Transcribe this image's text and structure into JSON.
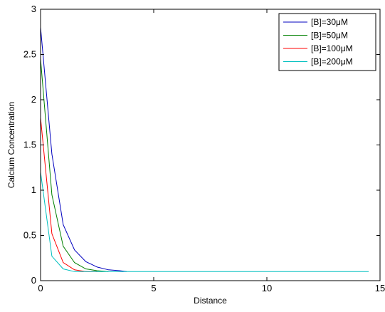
{
  "chart_data": {
    "type": "line",
    "title": "",
    "xlabel": "Distance",
    "ylabel": "Calcium Concentration",
    "xlim": [
      0,
      15
    ],
    "ylim": [
      0,
      3
    ],
    "xticks": [
      0,
      5,
      10,
      15
    ],
    "yticks": [
      0,
      0.5,
      1,
      1.5,
      2,
      2.5,
      3
    ],
    "xtick_labels": [
      "0",
      "5",
      "10",
      "15"
    ],
    "ytick_labels": [
      "0",
      "0.5",
      "1",
      "1.5",
      "2",
      "2.5",
      "3"
    ],
    "grid": false,
    "legend_position": "top-right",
    "series": [
      {
        "name": "[B]=30μM",
        "color": "#0000bf",
        "x": [
          0,
          0.5,
          1,
          1.5,
          2,
          2.5,
          3,
          3.5,
          3.8
        ],
        "y": [
          2.8,
          1.4,
          0.62,
          0.34,
          0.21,
          0.15,
          0.12,
          0.11,
          0.1
        ]
      },
      {
        "name": "[B]=50μM",
        "color": "#008000",
        "x": [
          0,
          0.5,
          1,
          1.5,
          2,
          2.5,
          3
        ],
        "y": [
          2.45,
          0.95,
          0.38,
          0.2,
          0.13,
          0.11,
          0.1
        ]
      },
      {
        "name": "[B]=100μM",
        "color": "#ff0000",
        "x": [
          0,
          0.5,
          1,
          1.5,
          2,
          2.5
        ],
        "y": [
          1.8,
          0.52,
          0.2,
          0.12,
          0.1,
          0.1
        ]
      },
      {
        "name": "[B]=200μM",
        "color": "#00bfbf",
        "x": [
          0,
          0.5,
          1,
          1.5,
          2,
          2.5,
          3,
          4,
          5,
          6,
          7,
          8,
          9,
          10,
          11,
          12,
          13,
          14,
          14.5
        ],
        "y": [
          1.2,
          0.27,
          0.13,
          0.1,
          0.1,
          0.1,
          0.1,
          0.1,
          0.1,
          0.1,
          0.1,
          0.1,
          0.1,
          0.1,
          0.1,
          0.1,
          0.1,
          0.1,
          0.1
        ]
      }
    ]
  }
}
